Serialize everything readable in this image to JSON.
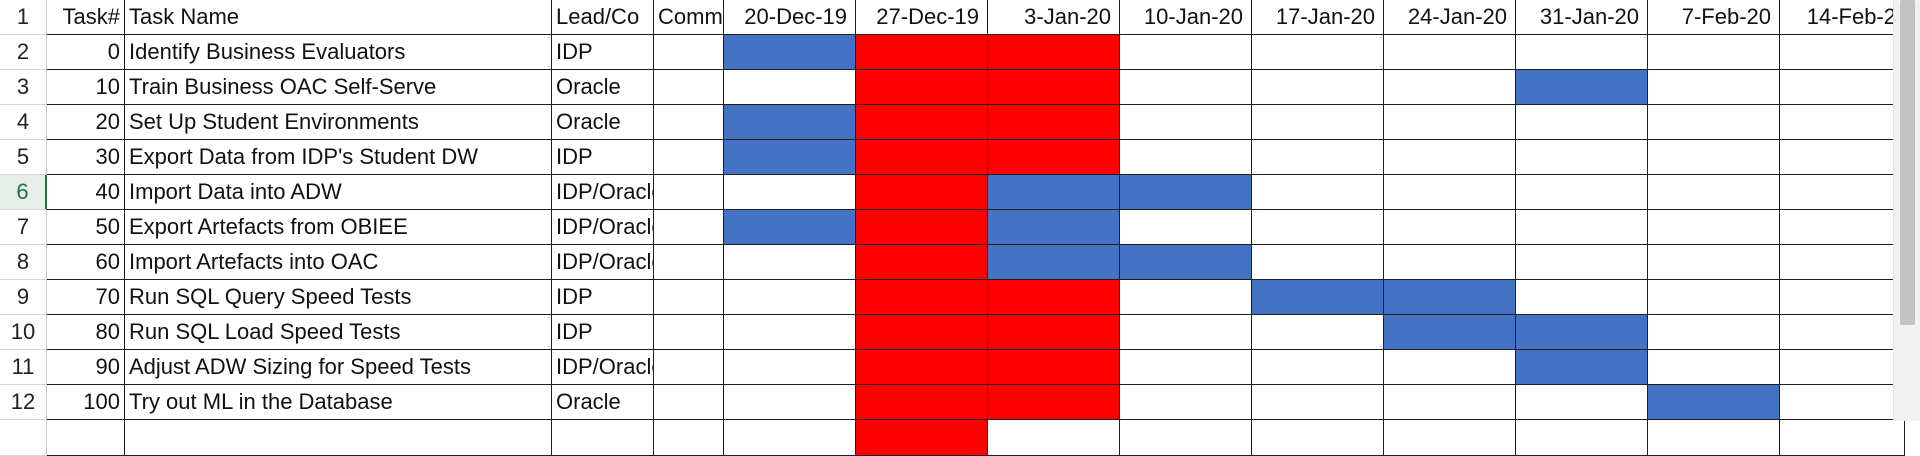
{
  "row_numbers": [
    "1",
    "2",
    "3",
    "4",
    "5",
    "6",
    "7",
    "8",
    "9",
    "10",
    "11",
    "12",
    ""
  ],
  "active_row_index": 5,
  "columns": {
    "task_num": "Task#",
    "task_name": "Task Name",
    "lead": "Lead/Co",
    "comments": "Comm",
    "dates": [
      "20-Dec-19",
      "27-Dec-19",
      "3-Jan-20",
      "10-Jan-20",
      "17-Jan-20",
      "24-Jan-20",
      "31-Jan-20",
      "7-Feb-20",
      "14-Feb-2"
    ]
  },
  "tasks": [
    {
      "num": "0",
      "name": "Identify Business Evaluators",
      "lead": "IDP",
      "bars": [
        "blue",
        "red",
        "red",
        "",
        "",
        "",
        "",
        "",
        ""
      ]
    },
    {
      "num": "10",
      "name": "Train Business OAC Self-Serve",
      "lead": " Oracle",
      "bars": [
        "",
        "red",
        "red",
        "",
        "",
        "",
        "blue",
        "",
        ""
      ]
    },
    {
      "num": "20",
      "name": "Set Up Student Environments",
      "lead": " Oracle",
      "bars": [
        "blue",
        "red",
        "red",
        "",
        "",
        "",
        "",
        "",
        ""
      ]
    },
    {
      "num": "30",
      "name": "Export Data from IDP's Student DW",
      "lead": " IDP",
      "bars": [
        "blue",
        "red",
        "red",
        "",
        "",
        "",
        "",
        "",
        ""
      ]
    },
    {
      "num": "40",
      "name": "Import Data into ADW",
      "lead": " IDP/Oracle",
      "bars": [
        "",
        "red",
        "blue",
        "blue",
        "",
        "",
        "",
        "",
        ""
      ]
    },
    {
      "num": "50",
      "name": "Export Artefacts from OBIEE",
      "lead": " IDP/Oracle",
      "bars": [
        "blue",
        "red",
        "blue",
        "",
        "",
        "",
        "",
        "",
        ""
      ]
    },
    {
      "num": "60",
      "name": "Import Artefacts into OAC",
      "lead": " IDP/Oracle",
      "bars": [
        "",
        "red",
        "blue",
        "blue",
        "",
        "",
        "",
        "",
        ""
      ]
    },
    {
      "num": "70",
      "name": "Run SQL Query Speed Tests",
      "lead": " IDP",
      "bars": [
        "",
        "red",
        "red",
        "",
        "blue",
        "blue",
        "",
        "",
        ""
      ]
    },
    {
      "num": "80",
      "name": "Run SQL Load Speed Tests",
      "lead": " IDP",
      "bars": [
        "",
        "red",
        "red",
        "",
        "",
        "blue",
        "blue",
        "",
        ""
      ]
    },
    {
      "num": "90",
      "name": "Adjust ADW Sizing for Speed Tests",
      "lead": " IDP/Oracle",
      "bars": [
        "",
        "red",
        "red",
        "",
        "",
        "",
        "blue",
        "",
        ""
      ]
    },
    {
      "num": "100",
      "name": "Try out ML in the Database",
      "lead": " Oracle",
      "bars": [
        "",
        "red",
        "red",
        "",
        "",
        "",
        "",
        "blue",
        ""
      ]
    },
    {
      "num": "",
      "name": "",
      "lead": "",
      "bars": [
        "",
        "red",
        "",
        "",
        "",
        "",
        "",
        "",
        ""
      ]
    }
  ]
}
